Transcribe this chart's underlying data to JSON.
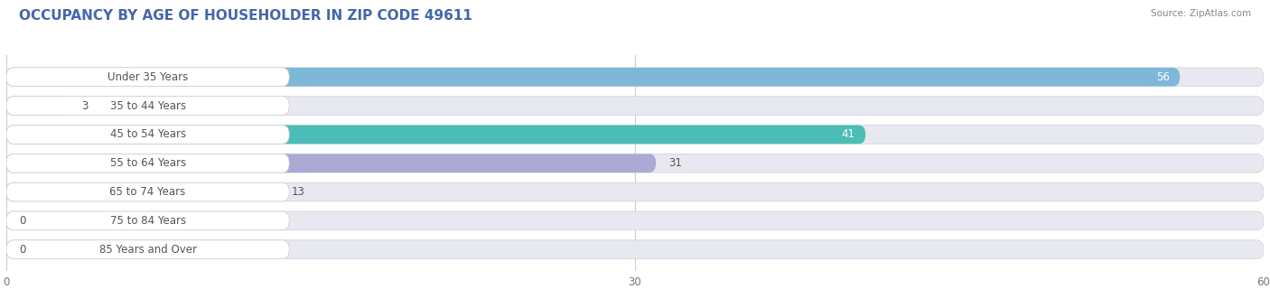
{
  "title": "OCCUPANCY BY AGE OF HOUSEHOLDER IN ZIP CODE 49611",
  "source": "Source: ZipAtlas.com",
  "categories": [
    "Under 35 Years",
    "35 to 44 Years",
    "45 to 54 Years",
    "55 to 64 Years",
    "65 to 74 Years",
    "75 to 84 Years",
    "85 Years and Over"
  ],
  "values": [
    56,
    3,
    41,
    31,
    13,
    0,
    0
  ],
  "bar_colors": [
    "#7EB8D8",
    "#C4AACC",
    "#4DBDB8",
    "#AAAAD4",
    "#F5AABB",
    "#F5CFA0",
    "#F5AABB"
  ],
  "xlim": [
    0,
    60
  ],
  "xticks": [
    0,
    30,
    60
  ],
  "bar_height": 0.65,
  "figure_bg": "#ffffff",
  "bar_bg_color": "#e8e8f0",
  "title_fontsize": 11,
  "label_fontsize": 8.5,
  "value_fontsize": 8.5,
  "title_color": "#4466aa",
  "label_color": "#555555",
  "value_color_inside": "#ffffff",
  "value_color_outside": "#555555",
  "source_color": "#888888"
}
